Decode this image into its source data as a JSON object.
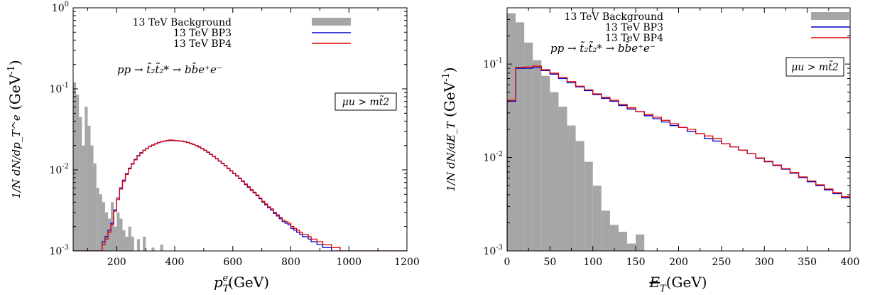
{
  "chart_data": [
    {
      "type": "histogram",
      "panel": "left",
      "xlabel": "p_T^e (GeV)",
      "xlabel_main": "p",
      "xlabel_sub": "T",
      "xlabel_sup": "e",
      "xlabel_unit": "(GeV)",
      "ylabel": "1/N dN/dp_T^e (GeV^-1)",
      "ylabel_unit": "(GeV",
      "ylabel_unit_sup": "-1",
      "xlim": [
        50,
        1200
      ],
      "ylim": [
        0.001,
        1
      ],
      "yscale": "log",
      "xticks": [
        "200",
        "400",
        "600",
        "800",
        "1000",
        "1200"
      ],
      "yticks": [
        {
          "base": "10",
          "exp": "0"
        },
        {
          "base": "10",
          "exp": "-1"
        },
        {
          "base": "10",
          "exp": "-2"
        },
        {
          "base": "10",
          "exp": "-3"
        }
      ],
      "annotation": "pp → t̃₂t̃₂* → bb̄e⁺e⁻",
      "condition_box": "μu > mt̃2",
      "legend": [
        "13 TeV Background",
        "13 TeV BP3",
        "13 TeV BP4"
      ],
      "legend_position": "top-right",
      "bin_width": 10,
      "series": [
        {
          "name": "13 TeV Background",
          "style": "filled",
          "color": "#a6a6a6",
          "x_start": 50,
          "values": [
            0.12,
            0.085,
            0.045,
            0.02,
            0.06,
            0.035,
            0.02,
            0.012,
            0.006,
            0.005,
            0.004,
            0.003,
            0.0025,
            0.004,
            0.002,
            0.003,
            0.0025,
            0.0018,
            0.0015,
            0.002,
            0.0015,
            0.001,
            0.0014,
            0.001,
            0.0015,
            0.001,
            0.001,
            0.0011,
            0.001,
            0.001,
            0.0012,
            0.001,
            0.001,
            0.001,
            0.001,
            0.001,
            0.001,
            0.001,
            0.001,
            0.001,
            0.001,
            0.001,
            0.001,
            0.001,
            0.001,
            0.001,
            0.001,
            0.001,
            0.001,
            0.001,
            0.001,
            0.001,
            0.001,
            0.001,
            0.001,
            0.001,
            0.001,
            0.001,
            0.001,
            0.001,
            0.001,
            0.001,
            0.001,
            0.001,
            0.001,
            0.001,
            0.001,
            0.001,
            0.001,
            0.001,
            0.001,
            0.001,
            0.001,
            0.001,
            0.001,
            0.001,
            0.001,
            0.001,
            0.001,
            0.001,
            0.001,
            0.001,
            0.001,
            0.001,
            0.001,
            0.001,
            0.001,
            0.001,
            0.001,
            0.001,
            0.001,
            0.001,
            0.001,
            0.001,
            0.001,
            0.001,
            0.001,
            0.001,
            0.001,
            0.001,
            0.001,
            0.001,
            0.001,
            0.001,
            0.001,
            0.001,
            0.001,
            0.001,
            0.001,
            0.001,
            0.001,
            0.001,
            0.001,
            0.001,
            0.001
          ]
        },
        {
          "name": "13 TeV BP3",
          "style": "step",
          "color": "#0000cc",
          "x_start": 50,
          "values": [
            0.001,
            0.001,
            0.001,
            0.001,
            0.001,
            0.001,
            0.001,
            0.001,
            0.001,
            0.001,
            0.0013,
            0.0015,
            0.0018,
            0.0022,
            0.0032,
            0.0045,
            0.006,
            0.0075,
            0.009,
            0.0105,
            0.012,
            0.0135,
            0.015,
            0.0163,
            0.0175,
            0.0185,
            0.0195,
            0.0203,
            0.021,
            0.0218,
            0.0222,
            0.0226,
            0.0229,
            0.023,
            0.023,
            0.0229,
            0.0228,
            0.0226,
            0.0222,
            0.0218,
            0.0212,
            0.0206,
            0.0199,
            0.0191,
            0.0183,
            0.0174,
            0.0165,
            0.0155,
            0.0146,
            0.0137,
            0.0128,
            0.012,
            0.0112,
            0.0104,
            0.0097,
            0.009,
            0.0084,
            0.0078,
            0.0072,
            0.0066,
            0.0061,
            0.0056,
            0.0052,
            0.0048,
            0.0044,
            0.004,
            0.0037,
            0.0034,
            0.0032,
            0.0029,
            0.0027,
            0.0025,
            0.0023,
            0.0022,
            0.0021,
            0.0019,
            0.0018,
            0.0017,
            0.0016,
            0.0015,
            0.0015,
            0.0014,
            0.0013,
            0.0013,
            0.0012,
            0.0012,
            0.0011,
            0.0011,
            0.0011,
            0.001,
            0.001,
            0.001,
            0.001,
            0.001,
            0.001,
            0.001,
            0.001,
            0.001,
            0.001,
            0.001,
            0.001,
            0.001,
            0.001,
            0.001,
            0.001,
            0.001,
            0.001,
            0.001,
            0.001,
            0.001,
            0.001,
            0.001,
            0.001,
            0.001,
            0.001
          ]
        },
        {
          "name": "13 TeV BP4",
          "style": "step",
          "color": "#e00000",
          "x_start": 50,
          "values": [
            0.001,
            0.001,
            0.001,
            0.001,
            0.001,
            0.001,
            0.001,
            0.001,
            0.001,
            0.001,
            0.0012,
            0.0014,
            0.0017,
            0.0021,
            0.0031,
            0.0043,
            0.0058,
            0.0072,
            0.0088,
            0.0103,
            0.0118,
            0.0133,
            0.0148,
            0.0161,
            0.0174,
            0.0184,
            0.0194,
            0.0202,
            0.0209,
            0.0217,
            0.0223,
            0.0227,
            0.0231,
            0.0234,
            0.0232,
            0.023,
            0.0229,
            0.0227,
            0.0224,
            0.0219,
            0.0213,
            0.0207,
            0.02,
            0.0193,
            0.0184,
            0.0175,
            0.0166,
            0.0156,
            0.0147,
            0.0138,
            0.0129,
            0.0121,
            0.0113,
            0.0105,
            0.0098,
            0.0091,
            0.0085,
            0.0079,
            0.0073,
            0.0067,
            0.0062,
            0.0057,
            0.0053,
            0.0049,
            0.0045,
            0.0041,
            0.0038,
            0.0035,
            0.0033,
            0.003,
            0.0028,
            0.0026,
            0.0024,
            0.0023,
            0.0022,
            0.002,
            0.0019,
            0.0018,
            0.0017,
            0.0016,
            0.0016,
            0.0015,
            0.0014,
            0.0014,
            0.0013,
            0.0013,
            0.0012,
            0.0012,
            0.0012,
            0.0011,
            0.0011,
            0.0011,
            0.001,
            0.001,
            0.001,
            0.001,
            0.001,
            0.001,
            0.001,
            0.001,
            0.001,
            0.001,
            0.001,
            0.001,
            0.001,
            0.001,
            0.001,
            0.001,
            0.001,
            0.001,
            0.001,
            0.001,
            0.001,
            0.001,
            0.001
          ]
        }
      ]
    },
    {
      "type": "histogram",
      "panel": "right",
      "xlabel": "E̸_T (GeV)",
      "xlabel_main": "E",
      "xlabel_sub": "T",
      "xlabel_unit": "(GeV)",
      "ylabel": "1/N dN/dE̸_T (GeV^-1)",
      "ylabel_unit": "(GeV",
      "ylabel_unit_sup": "-1",
      "xlim": [
        0,
        400
      ],
      "ylim": [
        0.001,
        0.4
      ],
      "yscale": "log",
      "xticks": [
        "0",
        "50",
        "100",
        "150",
        "200",
        "250",
        "300",
        "350",
        "400"
      ],
      "yticks": [
        {
          "base": "10",
          "exp": "-1"
        },
        {
          "base": "10",
          "exp": "-2"
        },
        {
          "base": "10",
          "exp": "-3"
        }
      ],
      "annotation": "pp → t̃₂t̃₂* → bb̄e⁺e⁻",
      "condition_box": "μu > mt̃2",
      "legend": [
        "13 TeV Background",
        "13 TeV BP3",
        "13 TeV BP4"
      ],
      "legend_position": "top-right",
      "bin_width": 10,
      "series": [
        {
          "name": "13 TeV Background",
          "style": "filled",
          "color": "#a6a6a6",
          "x_start": 0,
          "values": [
            0.35,
            0.28,
            0.17,
            0.11,
            0.075,
            0.05,
            0.035,
            0.022,
            0.015,
            0.009,
            0.005,
            0.0027,
            0.0019,
            0.0016,
            0.0012,
            0.0015,
            0.001,
            0.001,
            0.001,
            0.001,
            0.001,
            0.001,
            0.001,
            0.001,
            0.001,
            0.001,
            0.001,
            0.001,
            0.001,
            0.001,
            0.001,
            0.001,
            0.001,
            0.001,
            0.001,
            0.001,
            0.001,
            0.001,
            0.001,
            0.001
          ]
        },
        {
          "name": "13 TeV BP3",
          "style": "step",
          "color": "#0000cc",
          "x_start": 0,
          "values": [
            0.04,
            0.09,
            0.09,
            0.092,
            0.085,
            0.078,
            0.07,
            0.063,
            0.057,
            0.052,
            0.047,
            0.043,
            0.04,
            0.036,
            0.033,
            0.031,
            0.028,
            0.026,
            0.024,
            0.022,
            0.021,
            0.019,
            0.018,
            0.016,
            0.015,
            0.014,
            0.013,
            0.012,
            0.011,
            0.0098,
            0.009,
            0.0082,
            0.0075,
            0.0068,
            0.0061,
            0.0055,
            0.005,
            0.0045,
            0.0041,
            0.0037
          ]
        },
        {
          "name": "13 TeV BP4",
          "style": "step",
          "color": "#e00000",
          "x_start": 0,
          "values": [
            0.041,
            0.092,
            0.093,
            0.095,
            0.087,
            0.08,
            0.072,
            0.065,
            0.058,
            0.053,
            0.048,
            0.044,
            0.041,
            0.037,
            0.034,
            0.031,
            0.029,
            0.027,
            0.025,
            0.023,
            0.021,
            0.02,
            0.018,
            0.017,
            0.016,
            0.014,
            0.013,
            0.012,
            0.011,
            0.0099,
            0.0091,
            0.0083,
            0.0076,
            0.0069,
            0.0062,
            0.0056,
            0.0051,
            0.0046,
            0.0042,
            0.0038
          ]
        }
      ]
    }
  ]
}
